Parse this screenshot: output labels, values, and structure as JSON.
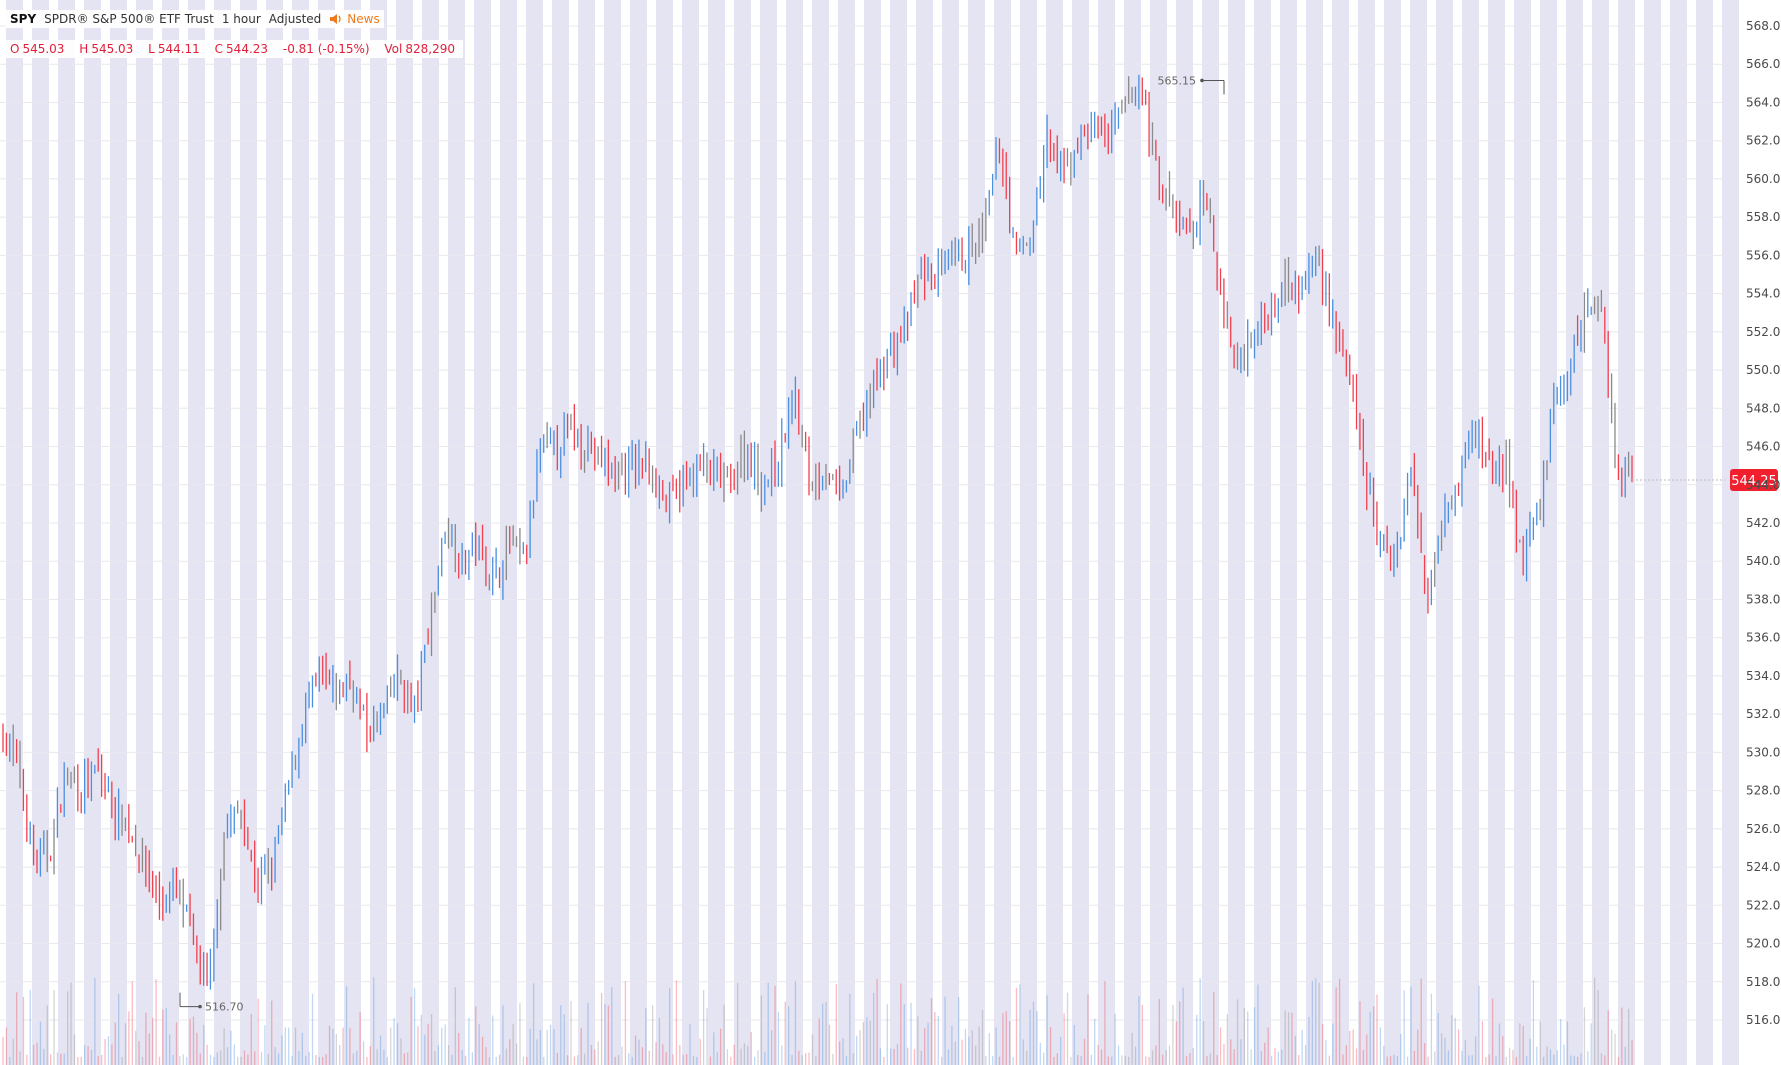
{
  "header": {
    "symbol": "SPY",
    "name": "SPDR® S&P 500® ETF Trust",
    "interval": "1 hour",
    "adjustment": "Adjusted",
    "news_label": "News",
    "news_icon": "speaker-icon",
    "open_label": "O",
    "open": "545.03",
    "high_label": "H",
    "high": "545.03",
    "low_label": "L",
    "low": "544.11",
    "close_label": "C",
    "close": "544.23",
    "change": "-0.81 (-0.15%)",
    "volume_label": "Vol",
    "volume": "828,290"
  },
  "colors": {
    "up": "#4a8fe0",
    "down": "#f0404e",
    "neutral": "#8a8a8a",
    "session_band": "#e5e4f2",
    "price_tag": "#f0202e",
    "grid": "#e8e8ee"
  },
  "chart_data": {
    "type": "line",
    "style": "ohlc-bars",
    "ylim": [
      515,
      569
    ],
    "y_ticks": [
      "568.00",
      "566.00",
      "564.00",
      "562.00",
      "560.00",
      "558.00",
      "556.00",
      "554.00",
      "552.00",
      "550.00",
      "548.00",
      "546.00",
      "544.00",
      "542.00",
      "540.00",
      "538.00",
      "536.00",
      "534.00",
      "532.00",
      "530.00",
      "528.00",
      "526.00",
      "524.00",
      "522.00",
      "520.00",
      "518.00",
      "516.00"
    ],
    "last_price": "544.25",
    "high_marker": "565.15",
    "low_marker": "516.70",
    "grid": true,
    "approximate_price_path": [
      531,
      529,
      524,
      525,
      529,
      528,
      529,
      527,
      526,
      524,
      522,
      523,
      520,
      517.5,
      526,
      527,
      523,
      524,
      528,
      532,
      534,
      533,
      534,
      531,
      532,
      534,
      532,
      537,
      542,
      540,
      541,
      539,
      541,
      540,
      546,
      546,
      547,
      546,
      545,
      544.5,
      545,
      545,
      543,
      544,
      545,
      544.5,
      544,
      546,
      544,
      545,
      549,
      544,
      545,
      543,
      547,
      549,
      551,
      552,
      555,
      555,
      555.5,
      556,
      557,
      562,
      556,
      557,
      562,
      560,
      562,
      563,
      562,
      564,
      565,
      560,
      558,
      557,
      559,
      554,
      550,
      552,
      553,
      555,
      554,
      556,
      553,
      550,
      545,
      541,
      540,
      545,
      538,
      543,
      544,
      547,
      545,
      545,
      540,
      542,
      548,
      550,
      553,
      554,
      545,
      544.23
    ],
    "volume_ylim": [
      0,
      1
    ]
  }
}
